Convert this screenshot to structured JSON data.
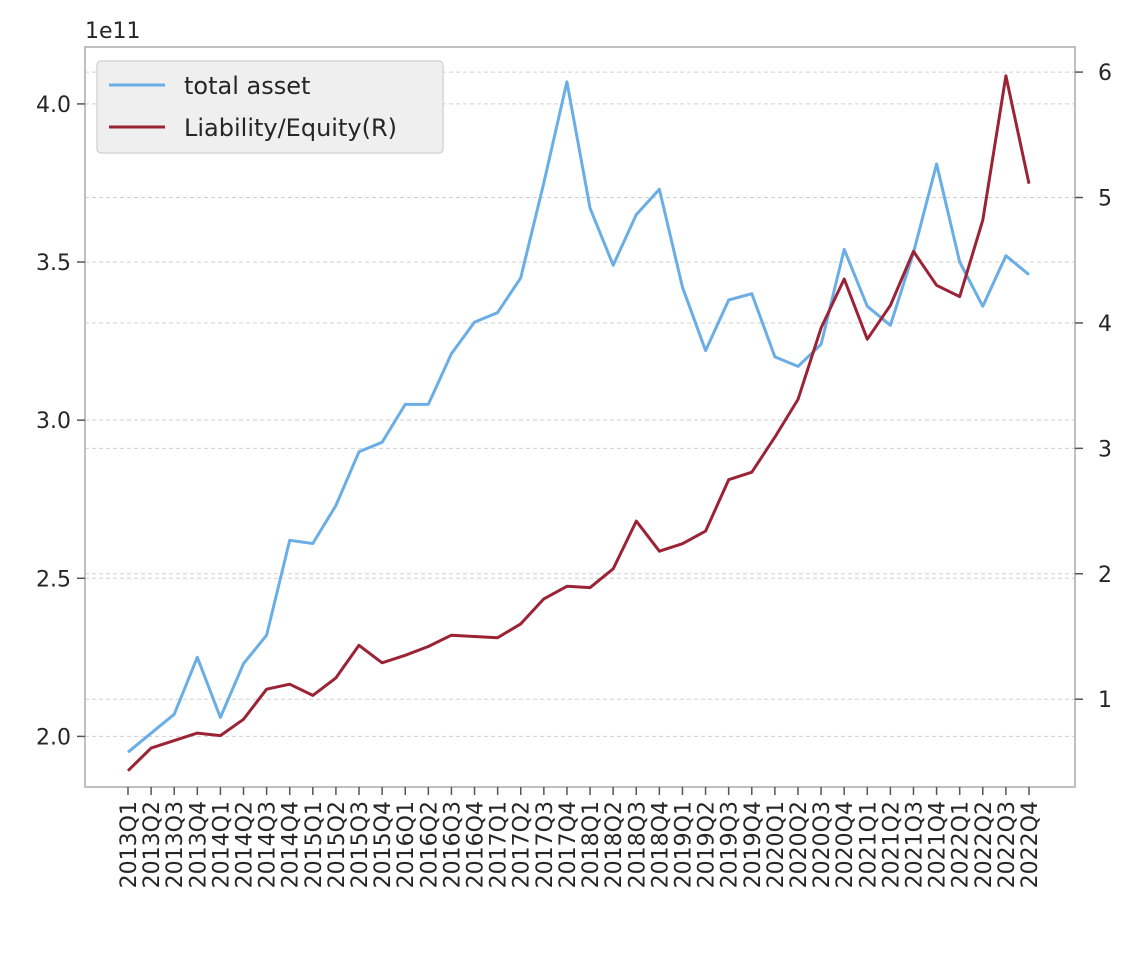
{
  "chart_data": {
    "type": "line",
    "title": "",
    "xlabel": "",
    "ylabel": "",
    "y_offset_label": "1e11",
    "y_scale": 100000000000,
    "ylim": [
      1.84,
      4.18
    ],
    "y_ticks": [
      2.0,
      2.5,
      3.0,
      3.5,
      4.0
    ],
    "y_tick_labels": [
      "2.0",
      "2.5",
      "3.0",
      "3.5",
      "4.0"
    ],
    "y2lim": [
      0.3,
      6.2
    ],
    "y2_ticks": [
      1,
      2,
      3,
      4,
      5,
      6
    ],
    "y2_tick_labels": [
      "1",
      "2",
      "3",
      "4",
      "5",
      "6"
    ],
    "grid": "horizontal dashed, right axis",
    "legend_position": "top-left",
    "categories": [
      "2013Q1",
      "2013Q2",
      "2013Q3",
      "2013Q4",
      "2014Q1",
      "2014Q2",
      "2014Q3",
      "2014Q4",
      "2015Q1",
      "2015Q2",
      "2015Q3",
      "2015Q4",
      "2016Q1",
      "2016Q2",
      "2016Q3",
      "2016Q4",
      "2017Q1",
      "2017Q2",
      "2017Q3",
      "2017Q4",
      "2018Q1",
      "2018Q2",
      "2018Q3",
      "2018Q4",
      "2019Q1",
      "2019Q2",
      "2019Q3",
      "2019Q4",
      "2020Q1",
      "2020Q2",
      "2020Q3",
      "2020Q4",
      "2021Q1",
      "2021Q2",
      "2021Q3",
      "2021Q4",
      "2022Q1",
      "2022Q2",
      "2022Q3",
      "2022Q4"
    ],
    "series": [
      {
        "name": "total asset",
        "axis": "left",
        "color": "#6aaee5",
        "values": [
          1.95,
          2.01,
          2.07,
          2.25,
          2.06,
          2.23,
          2.32,
          2.62,
          2.61,
          2.73,
          2.9,
          2.93,
          3.05,
          3.05,
          3.21,
          3.31,
          3.34,
          3.45,
          3.75,
          4.07,
          3.67,
          3.49,
          3.65,
          3.73,
          3.42,
          3.22,
          3.38,
          3.4,
          3.2,
          3.17,
          3.24,
          3.54,
          3.36,
          3.3,
          3.53,
          3.81,
          3.5,
          3.36,
          3.52,
          3.46
        ]
      },
      {
        "name": "Liability/Equity(R)",
        "axis": "right",
        "color": "#9b2335",
        "values": [
          0.43,
          0.61,
          0.67,
          0.73,
          0.71,
          0.84,
          1.08,
          1.12,
          1.03,
          1.17,
          1.43,
          1.29,
          1.35,
          1.42,
          1.51,
          1.5,
          1.49,
          1.6,
          1.8,
          1.9,
          1.89,
          2.04,
          2.42,
          2.18,
          2.24,
          2.34,
          2.75,
          2.81,
          3.09,
          3.39,
          3.96,
          4.35,
          3.87,
          4.14,
          4.57,
          4.3,
          4.21,
          4.82,
          5.97,
          5.11
        ]
      }
    ]
  }
}
